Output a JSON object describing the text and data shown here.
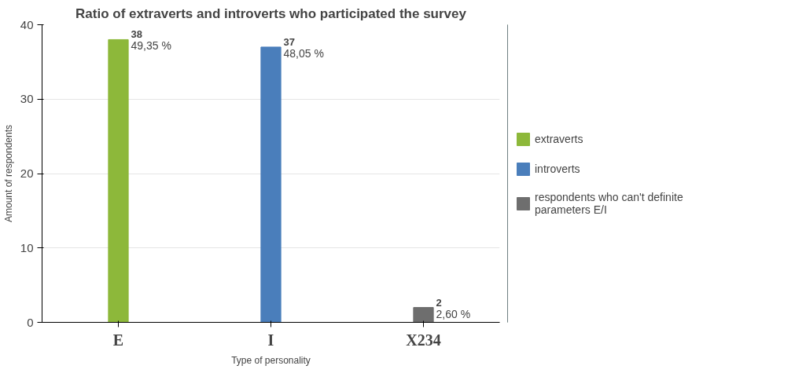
{
  "chart_data": {
    "type": "bar",
    "title": "Ratio of extraverts and introverts who participated the survey",
    "xlabel": "Type of personality",
    "ylabel": "Amount of respondents",
    "categories": [
      "E",
      "I",
      "X234"
    ],
    "series": [
      {
        "name": "extraverts",
        "color": "#8db83a",
        "values": [
          38,
          null,
          null
        ],
        "value_labels": [
          "38",
          null,
          null
        ]
      },
      {
        "name": "introverts",
        "color": "#4a7ebb",
        "values": [
          null,
          37,
          null
        ],
        "value_labels": [
          null,
          "37",
          null
        ]
      },
      {
        "name": "respondents who can't definite parameters E/I",
        "color": "#6e6e6e",
        "values": [
          null,
          null,
          2
        ],
        "value_labels": [
          null,
          null,
          "2"
        ]
      }
    ],
    "annotations": [
      {
        "text": "49,35 %",
        "x": "E",
        "y": 38
      },
      {
        "text": "48,05 %",
        "x": "I",
        "y": 37
      },
      {
        "text": "2,60 %",
        "x": "X234",
        "y": 2
      }
    ],
    "ylim": [
      0,
      40
    ],
    "yticks": [
      0,
      10,
      20,
      30,
      40
    ],
    "grid": "y",
    "legend": "right"
  }
}
